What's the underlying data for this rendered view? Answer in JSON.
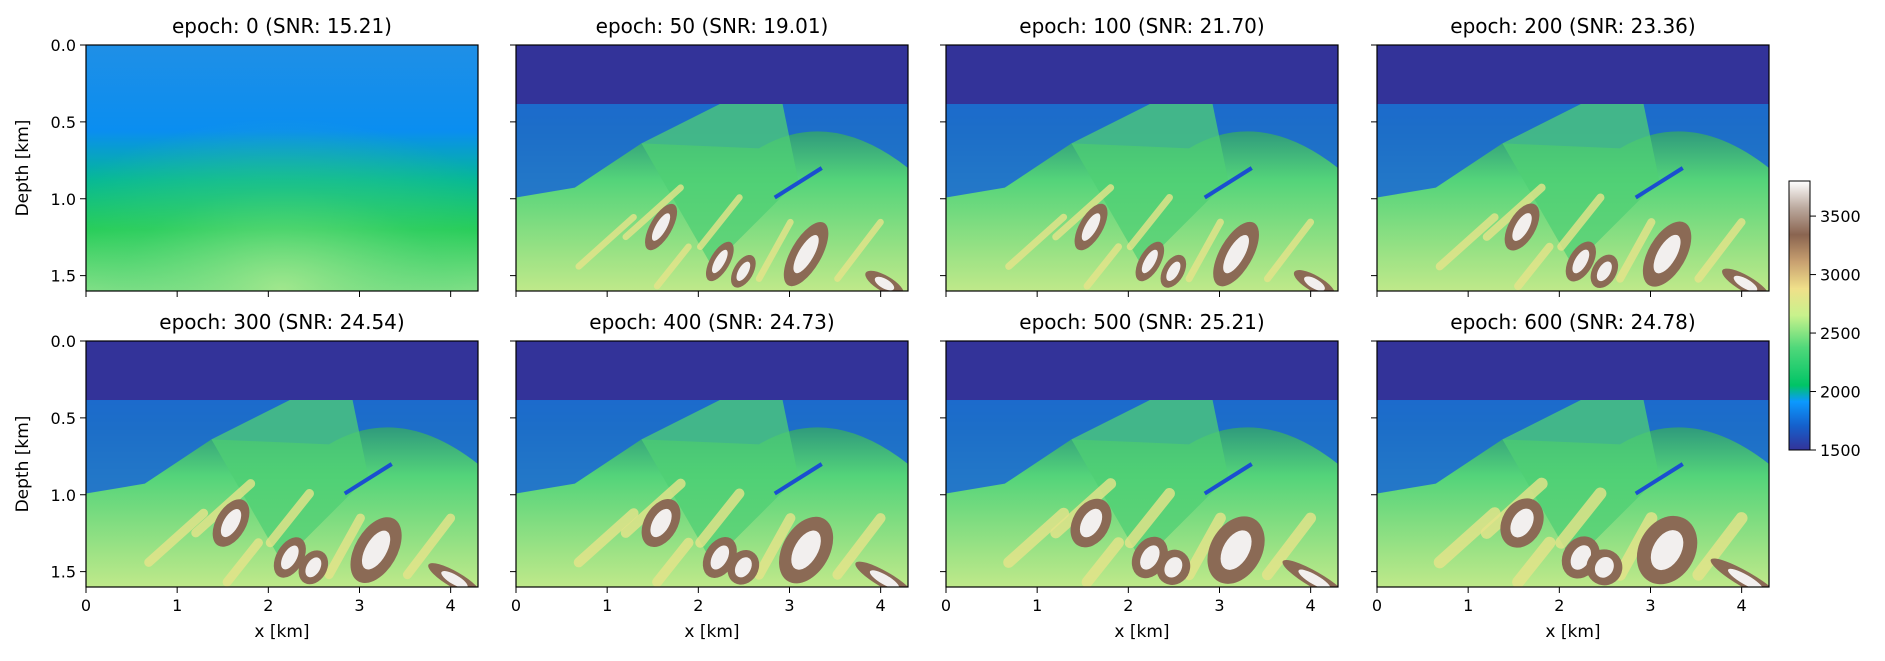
{
  "chart_data": {
    "type": "heatmap",
    "figure": "velocity model inversion snapshots",
    "xlabel": "x [km]",
    "ylabel": "Depth [km]",
    "xlim": [
      0,
      4.3
    ],
    "ylim": [
      1.6,
      0.0
    ],
    "x_ticks": [
      "0",
      "1",
      "2",
      "3",
      "4"
    ],
    "y_ticks": [
      "0.0",
      "0.5",
      "1.0",
      "1.5"
    ],
    "colormap": "terrain",
    "colorbar": {
      "range": [
        1500,
        3800
      ],
      "ticks": [
        "1500",
        "2000",
        "2500",
        "3000",
        "3500"
      ]
    },
    "panels": [
      {
        "title": "epoch: 0 (SNR: 15.21)",
        "epoch": 0,
        "snr": 15.21
      },
      {
        "title": "epoch: 50 (SNR: 19.01)",
        "epoch": 50,
        "snr": 19.01
      },
      {
        "title": "epoch: 100 (SNR: 21.70)",
        "epoch": 100,
        "snr": 21.7
      },
      {
        "title": "epoch: 200 (SNR: 23.36)",
        "epoch": 200,
        "snr": 23.36
      },
      {
        "title": "epoch: 300 (SNR: 24.54)",
        "epoch": 300,
        "snr": 24.54
      },
      {
        "title": "epoch: 400 (SNR: 24.73)",
        "epoch": 400,
        "snr": 24.73
      },
      {
        "title": "epoch: 500 (SNR: 25.21)",
        "epoch": 500,
        "snr": 25.21
      },
      {
        "title": "epoch: 600 (SNR: 24.78)",
        "epoch": 600,
        "snr": 24.78
      }
    ]
  }
}
